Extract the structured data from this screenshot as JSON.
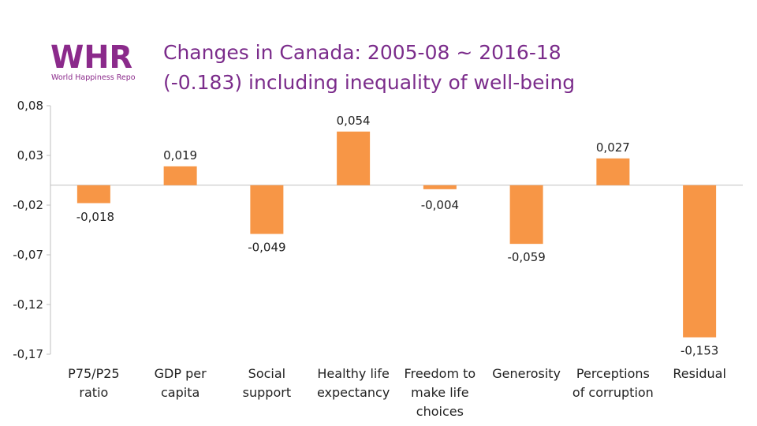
{
  "logo": {
    "text": "WHR",
    "subtitle": "World Happiness Report",
    "color": "#8b2a8b"
  },
  "title": {
    "line1": "Changes in Canada: 2005-08 ~ 2016-18",
    "line2": "(-0.183) including inequality of well-being",
    "color": "#7b2c8b"
  },
  "chart_data": {
    "type": "bar",
    "categories": [
      [
        "P75/P25",
        "ratio"
      ],
      [
        "GDP per",
        "capita"
      ],
      [
        "Social",
        "support"
      ],
      [
        "Healthy life",
        "expectancy"
      ],
      [
        "Freedom to",
        "make life",
        "choices"
      ],
      [
        "Generosity"
      ],
      [
        "Perceptions",
        "of corruption"
      ],
      [
        "Residual"
      ]
    ],
    "values": [
      -0.018,
      0.019,
      -0.049,
      0.054,
      -0.004,
      -0.059,
      0.027,
      -0.153
    ],
    "value_labels": [
      "-0,018",
      "0,019",
      "-0,049",
      "0,054",
      "-0,004",
      "-0,059",
      "0,027",
      "-0,153"
    ],
    "yticks": [
      0.08,
      0.03,
      -0.02,
      -0.07,
      -0.12,
      -0.17
    ],
    "ytick_labels": [
      "0,08",
      "0,03",
      "-0,02",
      "-0,07",
      "-0,12",
      "-0,17"
    ],
    "ylim": [
      -0.17,
      0.08
    ],
    "bar_color": "#f79646",
    "grid": false,
    "title": "Changes in Canada: 2005-08 ~ 2016-18 (-0.183) including inequality of well-being"
  }
}
